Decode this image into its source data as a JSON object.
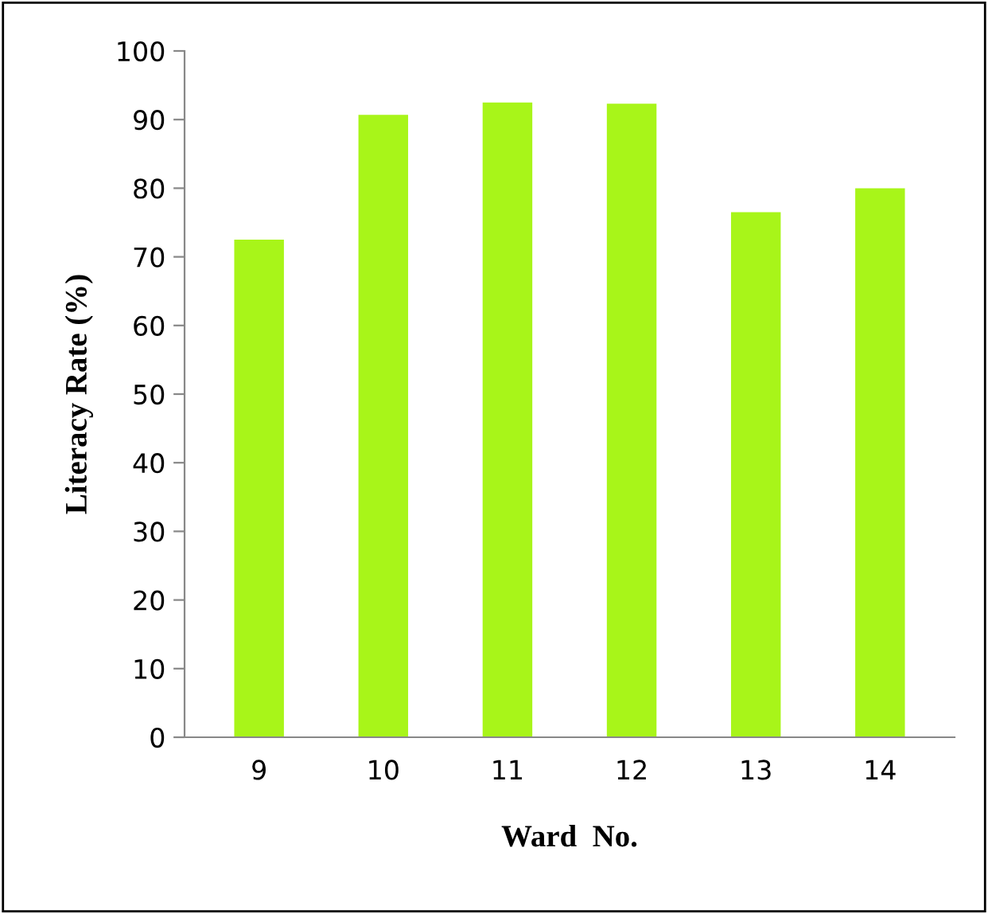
{
  "chart_data": {
    "type": "bar",
    "xlabel": "Ward  No.",
    "ylabel": "Literacy Rate (%)",
    "categories": [
      "9",
      "10",
      "11",
      "12",
      "13",
      "14"
    ],
    "values": [
      72.5,
      90.7,
      92.5,
      92.3,
      76.5,
      80.0
    ],
    "color": "#a8f519",
    "ylim": [
      0,
      100
    ],
    "yticks": [
      0,
      10,
      20,
      30,
      40,
      50,
      60,
      70,
      80,
      90,
      100
    ],
    "grid": false,
    "legend": false
  }
}
